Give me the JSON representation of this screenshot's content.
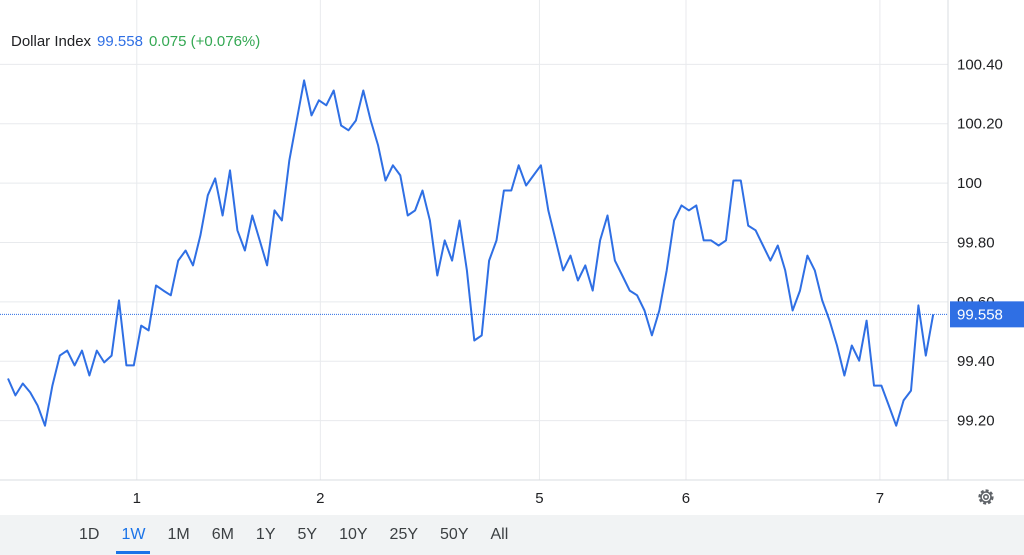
{
  "chart_data": {
    "type": "line",
    "title": "Dollar Index",
    "last_value": 99.558,
    "change_label": "0.075 (+0.076%)",
    "color": "#2f6fe4",
    "x": [
      0,
      1,
      2,
      3,
      4,
      5,
      6,
      7,
      8,
      9,
      10,
      11,
      12,
      13,
      14,
      15,
      16,
      17,
      18,
      19,
      20,
      21,
      22,
      23,
      24,
      25,
      26,
      27,
      28,
      29,
      30,
      31,
      32,
      33,
      34,
      35,
      36,
      37,
      38,
      39,
      40,
      41,
      42,
      43,
      44,
      45,
      46,
      47,
      48,
      49,
      50,
      51,
      52,
      53,
      54,
      55,
      56,
      57,
      58,
      59,
      60,
      61,
      62,
      63,
      64,
      65,
      66,
      67,
      68,
      69,
      70,
      71,
      72,
      73,
      74,
      75,
      76,
      77,
      78,
      79,
      80,
      81,
      82,
      83,
      84,
      85,
      86,
      87,
      88,
      89,
      90,
      91,
      92,
      93,
      94,
      95,
      96,
      97,
      98,
      99,
      100,
      101,
      102,
      103,
      104,
      105,
      106,
      107,
      108,
      109,
      110,
      111,
      112,
      113,
      114,
      115,
      116,
      117,
      118,
      119,
      120,
      121,
      122,
      123,
      124,
      125
    ],
    "values": [
      99.342,
      99.285,
      99.325,
      99.295,
      99.251,
      99.183,
      99.318,
      99.419,
      99.436,
      99.386,
      99.436,
      99.352,
      99.436,
      99.396,
      99.419,
      99.605,
      99.386,
      99.386,
      99.52,
      99.504,
      99.655,
      99.638,
      99.622,
      99.739,
      99.773,
      99.723,
      99.824,
      99.959,
      100.016,
      99.891,
      100.043,
      99.841,
      99.773,
      99.891,
      99.807,
      99.723,
      99.908,
      99.874,
      100.076,
      100.211,
      100.346,
      100.228,
      100.279,
      100.262,
      100.312,
      100.194,
      100.178,
      100.211,
      100.312,
      100.211,
      100.127,
      100.009,
      100.06,
      100.026,
      99.891,
      99.908,
      99.975,
      99.874,
      99.689,
      99.807,
      99.739,
      99.874,
      99.706,
      99.47,
      99.487,
      99.739,
      99.807,
      99.975,
      99.975,
      100.06,
      99.992,
      100.026,
      100.06,
      99.908,
      99.807,
      99.706,
      99.756,
      99.672,
      99.723,
      99.638,
      99.807,
      99.891,
      99.739,
      99.689,
      99.638,
      99.622,
      99.571,
      99.487,
      99.571,
      99.706,
      99.874,
      99.925,
      99.908,
      99.925,
      99.807,
      99.807,
      99.79,
      99.807,
      100.009,
      100.009,
      99.857,
      99.841,
      99.79,
      99.739,
      99.79,
      99.706,
      99.571,
      99.638,
      99.756,
      99.706,
      99.605,
      99.537,
      99.453,
      99.352,
      99.453,
      99.402,
      99.537,
      99.318,
      99.318,
      99.251,
      99.183,
      99.268,
      99.301,
      99.588,
      99.419,
      99.558
    ],
    "xlim": [
      0,
      127
    ],
    "xticks": [
      {
        "value": 17.4,
        "label": "1"
      },
      {
        "value": 42.2,
        "label": "2"
      },
      {
        "value": 71.8,
        "label": "5"
      },
      {
        "value": 91.6,
        "label": "6"
      },
      {
        "value": 117.8,
        "label": "7"
      }
    ],
    "ylim": [
      99.0,
      100.6
    ],
    "yticks": [
      {
        "value": 99.2,
        "label": "99.20"
      },
      {
        "value": 99.4,
        "label": "99.40"
      },
      {
        "value": 99.6,
        "label": "99.60"
      },
      {
        "value": 99.8,
        "label": "99.80"
      },
      100,
      {
        "value": 100.2,
        "label": "100.20"
      },
      {
        "value": 100.4,
        "label": "100.40"
      }
    ],
    "grid": true,
    "ranges": [
      "1D",
      "1W",
      "1M",
      "6M",
      "1Y",
      "5Y",
      "10Y",
      "25Y",
      "50Y",
      "All"
    ],
    "selected_range": "1W"
  }
}
